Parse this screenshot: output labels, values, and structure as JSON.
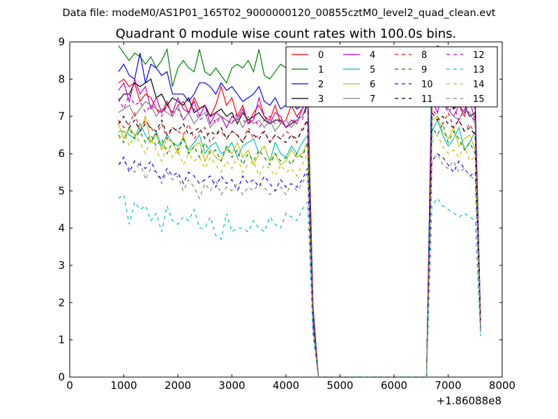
{
  "figure": {
    "suptitle": "Data file: modeM0/AS1P01_165T02_9000000120_00855cztM0_level2_quad_clean.evt"
  },
  "chart_data": {
    "type": "line",
    "title": "Quadrant 0 module wise count rates with 100.0s bins.",
    "xlabel": "",
    "ylabel": "",
    "xlim": [
      0,
      8000
    ],
    "ylim": [
      0,
      9
    ],
    "x_offset_label": "+1.86088e8",
    "xticks": [
      0,
      1000,
      2000,
      3000,
      4000,
      5000,
      6000,
      7000,
      8000
    ],
    "yticks": [
      0,
      1,
      2,
      3,
      4,
      5,
      6,
      7,
      8,
      9
    ],
    "xtick_labels": [
      "0",
      "1000",
      "2000",
      "3000",
      "4000",
      "5000",
      "6000",
      "7000",
      "8000"
    ],
    "ytick_labels": [
      "0",
      "1",
      "2",
      "3",
      "4",
      "5",
      "6",
      "7",
      "8",
      "9"
    ],
    "legend_position": "top-right",
    "grid": false,
    "x": [
      900,
      1000,
      1100,
      1200,
      1300,
      1400,
      1500,
      1600,
      1700,
      1800,
      1900,
      2000,
      2100,
      2200,
      2300,
      2400,
      2500,
      2600,
      2700,
      2800,
      2900,
      3000,
      3100,
      3200,
      3300,
      3400,
      3500,
      3600,
      3700,
      3800,
      3900,
      4000,
      4100,
      4200,
      4300,
      4400,
      4500,
      4600,
      4700,
      4800,
      4900,
      5000,
      5100,
      5200,
      5300,
      5400,
      5500,
      5600,
      5700,
      5800,
      5900,
      6000,
      6100,
      6200,
      6300,
      6400,
      6500,
      6600,
      6700,
      6800,
      6900,
      7000,
      7100,
      7200,
      7300,
      7400,
      7500,
      7600
    ],
    "series": [
      {
        "name": "0",
        "color": "#ff0000",
        "dash": "solid",
        "values": [
          7.9,
          8.0,
          7.8,
          7.9,
          7.4,
          7.6,
          7.5,
          7.2,
          7.1,
          7.4,
          7.0,
          7.3,
          7.4,
          7.1,
          7.5,
          7.2,
          7.3,
          7.0,
          7.3,
          7.8,
          7.3,
          7.5,
          7.0,
          7.3,
          6.8,
          7.1,
          7.3,
          7.0,
          6.9,
          7.3,
          6.8,
          6.9,
          7.3,
          7.0,
          7.2,
          7.4,
          1.7,
          0,
          0,
          0,
          0,
          0,
          0,
          0,
          0,
          0,
          0,
          0,
          0,
          0,
          0,
          0,
          0,
          0,
          0,
          0,
          0,
          0,
          7.6,
          7.3,
          7.5,
          7.6,
          7.2,
          7.3,
          7.0,
          7.5,
          7.2,
          1.4
        ]
      },
      {
        "name": "1",
        "color": "#008000",
        "dash": "solid",
        "values": [
          8.9,
          8.7,
          8.5,
          8.7,
          8.6,
          8.4,
          8.6,
          8.3,
          8.5,
          8.8,
          7.8,
          8.3,
          8.5,
          8.3,
          8.2,
          8.8,
          8.2,
          8.1,
          8.3,
          8.1,
          7.9,
          8.3,
          8.4,
          8.3,
          8.5,
          8.2,
          8.8,
          8.1,
          8.0,
          8.2,
          8.4,
          8.3,
          8.5,
          8.2,
          8.5,
          8.1,
          1.8,
          0,
          0,
          0,
          0,
          0,
          0,
          0,
          0,
          0,
          0,
          0,
          0,
          0,
          0,
          0,
          0,
          0,
          0,
          0,
          0,
          0,
          8.4,
          8.9,
          8.8,
          8.5,
          8.4,
          8.7,
          8.0,
          7.7,
          7.4,
          1.5
        ]
      },
      {
        "name": "2",
        "color": "#0000ff",
        "dash": "solid",
        "values": [
          8.2,
          8.4,
          8.1,
          8.0,
          8.7,
          7.9,
          8.4,
          8.3,
          8.1,
          8.2,
          7.6,
          7.6,
          7.6,
          7.4,
          7.6,
          7.9,
          7.9,
          7.8,
          7.6,
          7.9,
          7.7,
          7.8,
          7.6,
          7.4,
          7.5,
          7.6,
          7.8,
          7.4,
          7.3,
          7.5,
          7.2,
          7.3,
          7.4,
          7.2,
          7.3,
          7.7,
          1.9,
          0,
          0,
          0,
          0,
          0,
          0,
          0,
          0,
          0,
          0,
          0,
          0,
          0,
          0,
          0,
          0,
          0,
          0,
          0,
          0,
          0,
          8.1,
          8.0,
          8.2,
          7.9,
          7.4,
          7.7,
          7.6,
          7.4,
          7.3,
          1.5
        ]
      },
      {
        "name": "3",
        "color": "#000000",
        "dash": "solid",
        "values": [
          7.4,
          7.6,
          7.6,
          7.9,
          7.8,
          7.9,
          8.0,
          7.5,
          7.6,
          7.3,
          7.5,
          7.4,
          7.3,
          7.5,
          7.1,
          7.2,
          7.3,
          7.0,
          7.1,
          7.2,
          7.0,
          7.1,
          6.8,
          7.1,
          6.9,
          7.0,
          7.1,
          6.9,
          6.8,
          6.9,
          6.9,
          6.7,
          6.8,
          6.9,
          7.0,
          7.3,
          1.6,
          0,
          0,
          0,
          0,
          0,
          0,
          0,
          0,
          0,
          0,
          0,
          0,
          0,
          0,
          0,
          0,
          0,
          0,
          0,
          0,
          0,
          7.6,
          7.9,
          7.7,
          7.5,
          7.2,
          7.4,
          7.3,
          7.0,
          7.1,
          1.4
        ]
      },
      {
        "name": "4",
        "color": "#bf00bf",
        "dash": "solid",
        "values": [
          7.7,
          7.9,
          7.4,
          8.0,
          7.6,
          7.8,
          7.2,
          7.5,
          7.1,
          7.3,
          7.1,
          7.5,
          7.2,
          7.1,
          7.4,
          7.0,
          7.3,
          6.8,
          7.1,
          7.0,
          6.7,
          7.0,
          6.9,
          7.2,
          6.8,
          6.9,
          7.5,
          7.0,
          6.8,
          7.1,
          7.0,
          6.7,
          6.9,
          6.8,
          7.2,
          7.6,
          1.6,
          0,
          0,
          0,
          0,
          0,
          0,
          0,
          0,
          0,
          0,
          0,
          0,
          0,
          0,
          0,
          0,
          0,
          0,
          0,
          0,
          0,
          7.5,
          7.1,
          7.6,
          7.2,
          7.0,
          7.3,
          7.1,
          7.4,
          6.9,
          1.3
        ]
      },
      {
        "name": "5",
        "color": "#00bfbf",
        "dash": "solid",
        "values": [
          6.6,
          6.6,
          6.5,
          6.4,
          6.8,
          6.5,
          6.3,
          6.6,
          6.2,
          6.5,
          6.3,
          6.2,
          6.4,
          6.1,
          6.3,
          6.5,
          6.0,
          6.2,
          6.3,
          6.0,
          6.1,
          6.3,
          5.9,
          6.2,
          6.3,
          6.4,
          6.0,
          6.2,
          5.8,
          6.3,
          6.0,
          5.9,
          6.2,
          6.0,
          6.3,
          6.5,
          1.5,
          0,
          0,
          0,
          0,
          0,
          0,
          0,
          0,
          0,
          0,
          0,
          0,
          0,
          0,
          0,
          0,
          0,
          0,
          0,
          0,
          0,
          6.6,
          6.9,
          6.5,
          6.2,
          6.4,
          6.7,
          6.1,
          6.3,
          6.6,
          1.2
        ]
      },
      {
        "name": "6",
        "color": "#bfbf00",
        "dash": "solid",
        "values": [
          6.8,
          6.4,
          6.7,
          6.5,
          6.6,
          7.0,
          6.3,
          6.5,
          6.1,
          6.4,
          6.3,
          6.0,
          6.5,
          6.0,
          6.2,
          6.3,
          5.8,
          6.1,
          5.9,
          5.8,
          6.2,
          6.0,
          6.3,
          5.9,
          6.1,
          5.7,
          6.0,
          6.2,
          5.8,
          6.0,
          5.7,
          5.8,
          6.1,
          5.9,
          6.0,
          6.3,
          1.5,
          0,
          0,
          0,
          0,
          0,
          0,
          0,
          0,
          0,
          0,
          0,
          0,
          0,
          0,
          0,
          0,
          0,
          0,
          0,
          0,
          0,
          6.9,
          7.0,
          6.6,
          6.4,
          6.7,
          6.2,
          6.4,
          6.5,
          6.1,
          1.3
        ]
      },
      {
        "name": "7",
        "color": "#808080",
        "dash": "solid",
        "values": [
          7.1,
          7.2,
          7.3,
          7.0,
          7.2,
          7.4,
          7.3,
          7.0,
          7.2,
          7.1,
          7.0,
          7.3,
          6.9,
          7.1,
          6.8,
          7.0,
          7.1,
          6.7,
          6.9,
          7.0,
          6.9,
          6.8,
          7.0,
          6.7,
          7.0,
          6.8,
          6.9,
          6.7,
          6.9,
          6.6,
          6.8,
          6.9,
          6.7,
          6.9,
          7.0,
          7.4,
          1.7,
          0,
          0,
          0,
          0,
          0,
          0,
          0,
          0,
          0,
          0,
          0,
          0,
          0,
          0,
          0,
          0,
          0,
          0,
          0,
          0,
          0,
          7.4,
          7.6,
          7.3,
          7.2,
          7.0,
          6.9,
          7.2,
          7.1,
          6.8,
          1.5
        ]
      },
      {
        "name": "8",
        "color": "#ff0000",
        "dash": "dashed",
        "values": [
          6.9,
          6.7,
          6.8,
          7.1,
          6.6,
          6.9,
          6.7,
          6.5,
          6.8,
          6.4,
          6.7,
          6.6,
          6.5,
          6.8,
          6.4,
          6.6,
          6.7,
          6.3,
          6.5,
          6.6,
          6.4,
          6.6,
          6.5,
          6.3,
          6.7,
          6.4,
          6.5,
          6.6,
          6.3,
          6.5,
          6.4,
          6.6,
          6.5,
          6.3,
          6.7,
          6.9,
          1.6,
          0,
          0,
          0,
          0,
          0,
          0,
          0,
          0,
          0,
          0,
          0,
          0,
          0,
          0,
          0,
          0,
          0,
          0,
          0,
          0,
          0,
          7.2,
          7.0,
          6.8,
          7.1,
          6.7,
          6.9,
          6.6,
          6.8,
          6.5,
          1.4
        ]
      },
      {
        "name": "9",
        "color": "#008000",
        "dash": "dashed",
        "values": [
          6.5,
          6.3,
          6.7,
          6.4,
          6.6,
          6.3,
          6.5,
          6.2,
          6.4,
          6.0,
          6.3,
          6.1,
          6.4,
          6.0,
          6.2,
          5.9,
          6.3,
          6.0,
          6.1,
          5.8,
          6.2,
          5.9,
          6.1,
          5.7,
          6.0,
          5.8,
          6.1,
          5.9,
          5.7,
          6.0,
          5.8,
          5.9,
          5.7,
          6.0,
          5.9,
          6.3,
          1.5,
          0,
          0,
          0,
          0,
          0,
          0,
          0,
          0,
          0,
          0,
          0,
          0,
          0,
          0,
          0,
          0,
          0,
          0,
          0,
          0,
          0,
          6.7,
          6.5,
          6.8,
          6.3,
          6.6,
          6.4,
          6.1,
          6.3,
          6.0,
          1.3
        ]
      },
      {
        "name": "10",
        "color": "#0000ff",
        "dash": "dashed",
        "values": [
          5.7,
          5.9,
          5.5,
          5.8,
          5.7,
          5.6,
          5.8,
          5.5,
          5.3,
          5.6,
          5.4,
          5.5,
          5.2,
          5.5,
          5.4,
          5.2,
          5.3,
          5.4,
          5.1,
          5.4,
          5.2,
          5.3,
          5.0,
          5.4,
          5.2,
          5.3,
          5.1,
          5.4,
          5.2,
          5.0,
          5.3,
          5.1,
          5.2,
          5.1,
          5.3,
          5.6,
          1.3,
          0,
          0,
          0,
          0,
          0,
          0,
          0,
          0,
          0,
          0,
          0,
          0,
          0,
          0,
          0,
          0,
          0,
          0,
          0,
          0,
          0,
          5.8,
          6.0,
          5.9,
          5.7,
          5.5,
          5.8,
          5.6,
          5.4,
          5.5,
          1.2
        ]
      },
      {
        "name": "11",
        "color": "#000000",
        "dash": "dashed",
        "values": [
          6.8,
          7.0,
          6.7,
          6.9,
          6.6,
          6.8,
          6.7,
          6.6,
          6.9,
          6.5,
          6.7,
          6.6,
          6.8,
          6.5,
          6.6,
          6.7,
          6.4,
          6.6,
          6.5,
          6.7,
          6.4,
          6.6,
          6.5,
          6.3,
          6.6,
          6.5,
          6.4,
          6.6,
          6.3,
          6.5,
          6.4,
          6.3,
          6.5,
          6.4,
          6.6,
          6.9,
          1.6,
          0,
          0,
          0,
          0,
          0,
          0,
          0,
          0,
          0,
          0,
          0,
          0,
          0,
          0,
          0,
          0,
          0,
          0,
          0,
          0,
          0,
          7.1,
          6.9,
          7.0,
          6.8,
          6.7,
          6.9,
          6.6,
          6.7,
          6.5,
          1.4
        ]
      },
      {
        "name": "12",
        "color": "#bf00bf",
        "dash": "dashed",
        "values": [
          7.5,
          7.2,
          7.6,
          7.3,
          7.4,
          7.1,
          7.3,
          7.2,
          7.0,
          7.3,
          7.1,
          7.2,
          6.9,
          7.1,
          7.2,
          6.9,
          7.0,
          7.1,
          6.8,
          7.0,
          6.9,
          6.8,
          7.1,
          6.9,
          6.8,
          7.0,
          6.7,
          6.9,
          7.0,
          6.8,
          6.9,
          6.7,
          6.8,
          7.0,
          6.9,
          7.3,
          1.7,
          0,
          0,
          0,
          0,
          0,
          0,
          0,
          0,
          0,
          0,
          0,
          0,
          0,
          0,
          0,
          0,
          0,
          0,
          0,
          0,
          0,
          7.5,
          7.3,
          7.4,
          7.1,
          7.3,
          6.9,
          7.2,
          7.0,
          6.9,
          1.5
        ]
      },
      {
        "name": "13",
        "color": "#00bfbf",
        "dash": "dashed",
        "values": [
          4.8,
          4.9,
          4.1,
          4.7,
          4.5,
          4.6,
          4.2,
          4.4,
          3.9,
          4.6,
          4.2,
          4.1,
          4.3,
          4.2,
          4.5,
          4.0,
          4.0,
          4.3,
          3.8,
          3.7,
          4.4,
          3.9,
          4.0,
          4.0,
          3.9,
          4.2,
          4.0,
          3.9,
          4.3,
          4.1,
          4.0,
          4.4,
          4.3,
          4.2,
          4.5,
          4.7,
          1.1,
          0,
          0,
          0,
          0,
          0,
          0,
          0,
          0,
          0,
          0,
          0,
          0,
          0,
          0,
          0,
          0,
          0,
          0,
          0,
          0,
          0,
          4.6,
          4.8,
          4.6,
          4.5,
          4.4,
          4.3,
          4.4,
          4.3,
          4.2,
          1.1
        ]
      },
      {
        "name": "14",
        "color": "#bfbf00",
        "dash": "dashed",
        "values": [
          6.4,
          6.6,
          6.2,
          6.5,
          6.3,
          6.0,
          6.4,
          6.1,
          5.8,
          6.2,
          5.9,
          6.1,
          5.7,
          6.0,
          5.8,
          5.9,
          5.6,
          5.9,
          5.7,
          5.5,
          5.8,
          5.6,
          5.9,
          5.5,
          5.7,
          5.8,
          5.4,
          5.7,
          5.6,
          5.4,
          5.7,
          5.5,
          5.6,
          5.4,
          5.7,
          6.0,
          1.4,
          0,
          0,
          0,
          0,
          0,
          0,
          0,
          0,
          0,
          0,
          0,
          0,
          0,
          0,
          0,
          0,
          0,
          0,
          0,
          0,
          0,
          6.3,
          6.5,
          6.2,
          6.0,
          6.1,
          5.9,
          6.2,
          5.8,
          5.9,
          1.3
        ]
      },
      {
        "name": "15",
        "color": "#808080",
        "dash": "dashed",
        "values": [
          5.7,
          5.8,
          5.6,
          5.5,
          5.8,
          5.3,
          5.6,
          5.5,
          5.2,
          5.5,
          5.3,
          5.4,
          5.0,
          5.3,
          5.1,
          4.8,
          5.2,
          5.0,
          5.3,
          4.9,
          5.1,
          5.0,
          5.2,
          4.9,
          5.1,
          5.0,
          5.2,
          5.1,
          4.9,
          5.0,
          5.1,
          4.9,
          5.2,
          5.0,
          5.2,
          5.5,
          1.3,
          0,
          0,
          0,
          0,
          0,
          0,
          0,
          0,
          0,
          0,
          0,
          0,
          0,
          0,
          0,
          0,
          0,
          0,
          0,
          0,
          0,
          5.8,
          6.0,
          5.7,
          5.6,
          5.8,
          5.5,
          5.6,
          5.4,
          5.3,
          1.2
        ]
      }
    ]
  }
}
